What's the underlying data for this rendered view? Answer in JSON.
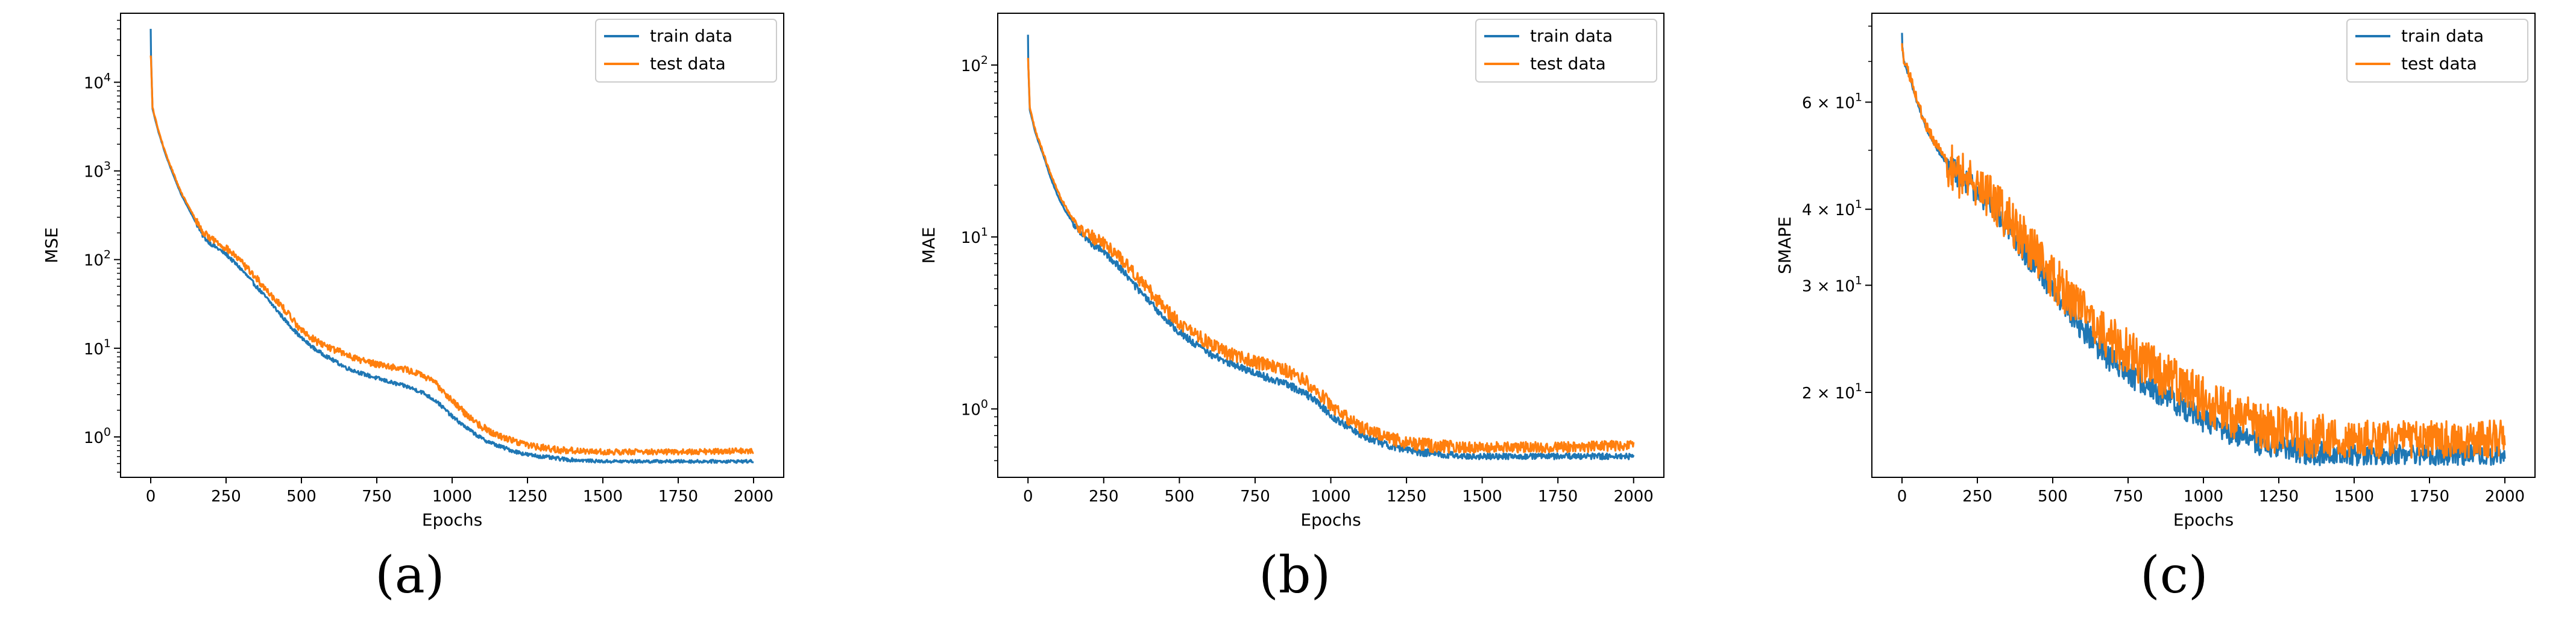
{
  "panel_labels": [
    "(a)",
    "(b)",
    "(c)"
  ],
  "chart_data": [
    {
      "type": "line",
      "panel": "(a)",
      "xlabel": "Epochs",
      "ylabel": "MSE",
      "yscale": "log",
      "xlim": [
        -100,
        2100
      ],
      "ylim": [
        0.35,
        60000
      ],
      "xticks": [
        0,
        250,
        500,
        750,
        1000,
        1250,
        1500,
        1750,
        2000
      ],
      "yticks": [
        {
          "value": 1,
          "label": "10^0"
        },
        {
          "value": 10,
          "label": "10^1"
        },
        {
          "value": 100,
          "label": "10^2"
        },
        {
          "value": 1000,
          "label": "10^3"
        },
        {
          "value": 10000,
          "label": "10^4"
        }
      ],
      "legend": "top-right",
      "grid": false,
      "series": [
        {
          "name": "train data",
          "color": "#1f77b4",
          "x": [
            0,
            1,
            6,
            25,
            50,
            75,
            100,
            125,
            150,
            175,
            200,
            250,
            300,
            350,
            400,
            450,
            500,
            550,
            600,
            650,
            700,
            750,
            800,
            850,
            900,
            950,
            1000,
            1050,
            1100,
            1150,
            1200,
            1250,
            1300,
            1350,
            1400,
            1450,
            1500,
            1600,
            1700,
            1800,
            1900,
            2000
          ],
          "y": [
            40000,
            20000,
            5000,
            2800,
            1500,
            900,
            550,
            380,
            260,
            180,
            150,
            115,
            78,
            50,
            32,
            20,
            13,
            9.5,
            7.5,
            6,
            5.2,
            4.6,
            4.1,
            3.7,
            3.2,
            2.5,
            1.7,
            1.25,
            0.95,
            0.8,
            0.7,
            0.63,
            0.6,
            0.57,
            0.55,
            0.54,
            0.53,
            0.53,
            0.53,
            0.53,
            0.53,
            0.53
          ]
        },
        {
          "name": "test data",
          "color": "#ff7f0e",
          "x": [
            0,
            1,
            6,
            25,
            50,
            75,
            100,
            125,
            150,
            175,
            200,
            250,
            300,
            350,
            400,
            450,
            500,
            550,
            600,
            650,
            700,
            750,
            800,
            850,
            900,
            950,
            1000,
            1050,
            1100,
            1150,
            1200,
            1250,
            1300,
            1350,
            1400,
            1450,
            1500,
            1600,
            1700,
            1800,
            1900,
            2000
          ],
          "y": [
            20000,
            18000,
            5200,
            2900,
            1550,
            950,
            580,
            400,
            280,
            200,
            175,
            135,
            95,
            62,
            40,
            26,
            16,
            12,
            10,
            8.5,
            7.3,
            6.7,
            6.2,
            5.7,
            5,
            3.9,
            2.6,
            1.75,
            1.3,
            1.05,
            0.92,
            0.82,
            0.76,
            0.72,
            0.7,
            0.69,
            0.68,
            0.68,
            0.68,
            0.68,
            0.69,
            0.7
          ]
        }
      ]
    },
    {
      "type": "line",
      "panel": "(b)",
      "xlabel": "Epochs",
      "ylabel": "MAE",
      "yscale": "log",
      "xlim": [
        -100,
        2100
      ],
      "ylim": [
        0.4,
        200
      ],
      "xticks": [
        0,
        250,
        500,
        750,
        1000,
        1250,
        1500,
        1750,
        2000
      ],
      "yticks": [
        {
          "value": 1,
          "label": "10^0"
        },
        {
          "value": 10,
          "label": "10^1"
        },
        {
          "value": 100,
          "label": "10^2"
        }
      ],
      "legend": "top-right",
      "grid": false,
      "series": [
        {
          "name": "train data",
          "color": "#1f77b4",
          "x": [
            0,
            1,
            6,
            25,
            50,
            75,
            100,
            125,
            150,
            175,
            200,
            250,
            300,
            350,
            400,
            450,
            500,
            550,
            600,
            650,
            700,
            750,
            800,
            850,
            900,
            950,
            1000,
            1050,
            1100,
            1150,
            1200,
            1250,
            1300,
            1350,
            1400,
            1450,
            1500,
            1600,
            1700,
            1800,
            1900,
            2000
          ],
          "y": [
            150,
            100,
            55,
            40,
            30,
            22,
            17,
            14,
            12,
            10.5,
            9.5,
            8.2,
            6.8,
            5.3,
            4.2,
            3.4,
            2.8,
            2.4,
            2.1,
            1.9,
            1.75,
            1.62,
            1.5,
            1.4,
            1.28,
            1.12,
            0.92,
            0.8,
            0.71,
            0.65,
            0.61,
            0.58,
            0.56,
            0.55,
            0.54,
            0.53,
            0.53,
            0.53,
            0.53,
            0.53,
            0.53,
            0.53
          ]
        },
        {
          "name": "test data",
          "color": "#ff7f0e",
          "x": [
            0,
            1,
            6,
            25,
            50,
            75,
            100,
            125,
            150,
            175,
            200,
            250,
            300,
            350,
            400,
            450,
            500,
            550,
            600,
            650,
            700,
            750,
            800,
            850,
            900,
            950,
            1000,
            1050,
            1100,
            1150,
            1200,
            1250,
            1300,
            1350,
            1400,
            1450,
            1500,
            1600,
            1700,
            1800,
            1900,
            2000
          ],
          "y": [
            110,
            100,
            56,
            41,
            31,
            23,
            18,
            15,
            12.5,
            11,
            10.3,
            9.2,
            7.8,
            6.2,
            4.9,
            3.9,
            3.2,
            2.75,
            2.4,
            2.15,
            2,
            1.88,
            1.78,
            1.68,
            1.52,
            1.3,
            1.06,
            0.9,
            0.79,
            0.72,
            0.67,
            0.64,
            0.62,
            0.61,
            0.6,
            0.6,
            0.6,
            0.6,
            0.6,
            0.6,
            0.61,
            0.62
          ]
        }
      ]
    },
    {
      "type": "line",
      "panel": "(c)",
      "xlabel": "Epochs",
      "ylabel": "SMAPE",
      "yscale": "log",
      "xlim": [
        -100,
        2100
      ],
      "ylim": [
        14.5,
        84
      ],
      "xticks": [
        0,
        250,
        500,
        750,
        1000,
        1250,
        1500,
        1750,
        2000
      ],
      "yticks": [
        {
          "value": 20,
          "label": "2 × 10^1"
        },
        {
          "value": 30,
          "label": "3 × 10^1"
        },
        {
          "value": 40,
          "label": "4 × 10^1"
        },
        {
          "value": 60,
          "label": "6 × 10^1"
        }
      ],
      "legend": "top-right",
      "grid": false,
      "series": [
        {
          "name": "train data",
          "color": "#1f77b4",
          "x": [
            0,
            1,
            6,
            25,
            50,
            75,
            100,
            125,
            150,
            175,
            200,
            250,
            300,
            350,
            400,
            450,
            500,
            550,
            600,
            650,
            700,
            750,
            800,
            850,
            900,
            950,
            1000,
            1050,
            1100,
            1150,
            1200,
            1250,
            1300,
            1350,
            1400,
            1450,
            1500,
            1600,
            1700,
            1800,
            1900,
            2000
          ],
          "y": [
            78,
            74,
            70,
            66,
            60,
            55,
            52,
            49.5,
            47.5,
            46,
            45,
            43,
            40.5,
            37.5,
            34.5,
            32,
            29.5,
            27.5,
            25.5,
            23.8,
            22.5,
            21.5,
            20.8,
            20,
            19.3,
            18.7,
            18.1,
            17.6,
            17.2,
            16.8,
            16.5,
            16.3,
            16.1,
            16,
            15.9,
            15.8,
            15.8,
            15.8,
            15.8,
            15.8,
            15.8,
            15.8
          ]
        },
        {
          "name": "test data",
          "color": "#ff7f0e",
          "x": [
            0,
            1,
            6,
            25,
            50,
            75,
            100,
            125,
            150,
            175,
            200,
            250,
            300,
            350,
            400,
            450,
            500,
            550,
            600,
            650,
            700,
            750,
            800,
            850,
            900,
            950,
            1000,
            1050,
            1100,
            1150,
            1200,
            1250,
            1300,
            1350,
            1400,
            1450,
            1500,
            1600,
            1700,
            1800,
            1900,
            2000
          ],
          "y": [
            75,
            73,
            70,
            66.5,
            60.5,
            55.5,
            52.5,
            50,
            48,
            46.5,
            45.5,
            44,
            42,
            39,
            36,
            33.5,
            31,
            29,
            27,
            25.5,
            24.3,
            23.3,
            22.5,
            21.7,
            21,
            20.3,
            19.6,
            19,
            18.5,
            18.1,
            17.7,
            17.4,
            17.2,
            17,
            16.9,
            16.8,
            16.8,
            16.8,
            16.8,
            16.8,
            16.8,
            16.8
          ]
        }
      ]
    }
  ]
}
